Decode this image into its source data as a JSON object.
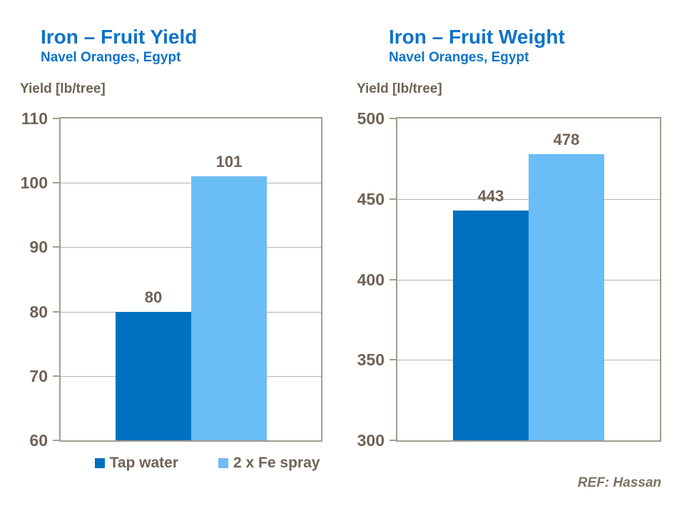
{
  "ref_label": "REF: Hassan",
  "colors": {
    "title_blue": "#0d72c8",
    "text_brown": "#6f6255",
    "ref_brown": "#7e7162",
    "bar_dark_blue": "#0070c0",
    "bar_light_blue": "#6bbdf5",
    "frame": "#a59c8f",
    "gridline": "#b9b1a7",
    "background": "#ffffff"
  },
  "legend": {
    "items": [
      {
        "label": "Tap water",
        "color": "#0070c0"
      },
      {
        "label": "2 x Fe spray",
        "color": "#6bbdf5"
      }
    ]
  },
  "chart_data": [
    {
      "type": "bar",
      "title": "Iron – Fruit Yield",
      "subtitle": "Navel Oranges, Egypt",
      "ylabel": "Yield [lb/tree]",
      "xlabel": "",
      "categories": [
        "Tap water",
        "2 x Fe spray"
      ],
      "values": [
        80,
        101
      ],
      "bar_colors": [
        "#0070c0",
        "#6bbdf5"
      ],
      "ylim": [
        60,
        110
      ],
      "yticks": [
        60,
        70,
        80,
        90,
        100,
        110
      ],
      "grid": true,
      "legend": [
        "Tap water",
        "2 x Fe spray"
      ],
      "legend_position": "bottom"
    },
    {
      "type": "bar",
      "title": "Iron – Fruit Weight",
      "subtitle": "Navel Oranges, Egypt",
      "ylabel": "Yield [lb/tree]",
      "xlabel": "",
      "categories": [
        "Tap water",
        "2 x Fe spray"
      ],
      "values": [
        443,
        478
      ],
      "bar_colors": [
        "#0070c0",
        "#6bbdf5"
      ],
      "ylim": [
        300,
        500
      ],
      "yticks": [
        300,
        350,
        400,
        450,
        500
      ],
      "grid": true,
      "legend": [],
      "legend_position": "none"
    }
  ]
}
